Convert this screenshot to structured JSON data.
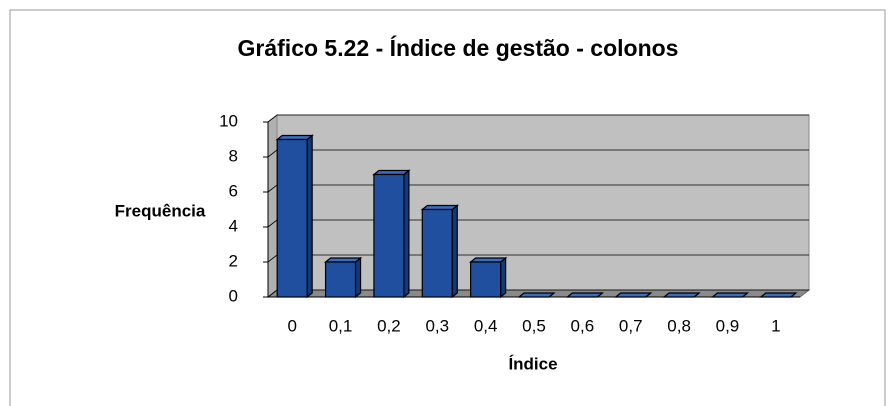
{
  "chart_data": {
    "type": "bar",
    "title": "Gráfico 5.22 - Índice de gestão - colonos",
    "x_label": "Índice",
    "y_label": "Frequência",
    "categories": [
      "0",
      "0,1",
      "0,2",
      "0,3",
      "0,4",
      "0,5",
      "0,6",
      "0,7",
      "0,8",
      "0,9",
      "1"
    ],
    "values": [
      9,
      2,
      7,
      5,
      2,
      0,
      0,
      0,
      0,
      0,
      0
    ],
    "color": "#1f4f9e",
    "ylim": [
      0,
      10
    ],
    "yticks": [
      0,
      2,
      4,
      6,
      8,
      10
    ],
    "grid": true
  }
}
